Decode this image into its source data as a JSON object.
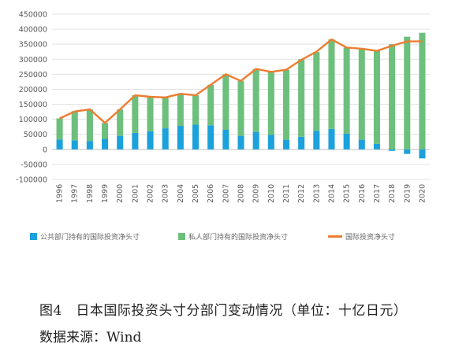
{
  "chart_data": {
    "type": "bar",
    "x": [
      "1996",
      "1997",
      "1998",
      "1999",
      "2000",
      "2001",
      "2002",
      "2003",
      "2004",
      "2005",
      "2006",
      "2007",
      "2008",
      "2009",
      "2010",
      "2011",
      "2012",
      "2013",
      "2014",
      "2015",
      "2016",
      "2017",
      "2018",
      "2019",
      "2020"
    ],
    "ylim": [
      -100000,
      450000
    ],
    "yticks": [
      "450000",
      "400000",
      "350000",
      "300000",
      "250000",
      "200000",
      "150000",
      "100000",
      "50000",
      "0",
      "-50000",
      "-100000"
    ],
    "series": [
      {
        "name": "公共部门持有的国际投资净头寸",
        "type": "bar",
        "color": "#1ba1dc",
        "values": [
          33000,
          30000,
          28000,
          35000,
          45000,
          55000,
          60000,
          70000,
          78000,
          82000,
          80000,
          65000,
          45000,
          58000,
          48000,
          32000,
          42000,
          62000,
          68000,
          52000,
          32000,
          18000,
          -5000,
          -15000,
          -30000
        ]
      },
      {
        "name": "私人部门持有的国际投资净头寸",
        "type": "bar",
        "color": "#6dbf7c",
        "values": [
          70000,
          97000,
          105000,
          53000,
          88000,
          125000,
          115000,
          103000,
          107000,
          98000,
          135000,
          185000,
          183000,
          210000,
          210000,
          233000,
          258000,
          262000,
          298000,
          287000,
          303000,
          310000,
          350000,
          375000,
          388000
        ]
      },
      {
        "name": "国际投资净头寸",
        "type": "line",
        "color": "#ed7d31",
        "values": [
          103000,
          126000,
          133000,
          88000,
          133000,
          180000,
          175000,
          173000,
          185000,
          180000,
          215000,
          250000,
          228000,
          268000,
          258000,
          265000,
          298000,
          325000,
          366000,
          339000,
          335000,
          328000,
          345000,
          359000,
          360000
        ]
      }
    ]
  },
  "caption": {
    "title": "图4　日本国际投资头寸分部门变动情况（单位：十亿日元）",
    "source": "数据来源：Wind"
  }
}
